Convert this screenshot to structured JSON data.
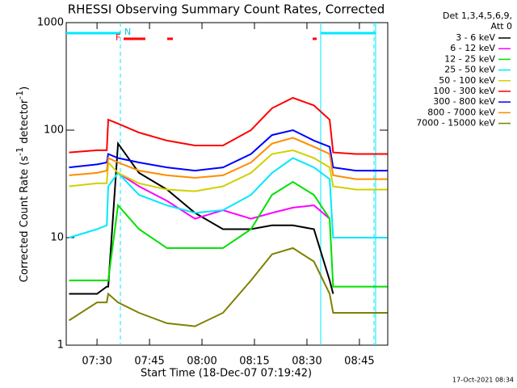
{
  "chart_data": {
    "type": "line",
    "title": "RHESSI Observing Summary Count Rates, Corrected",
    "x_label": "Start Time (18-Dec-07 07:19:42)",
    "y_label": [
      "Corrected Count Rate (s",
      "-1",
      " detector",
      "-1",
      ")"
    ],
    "legend_header": [
      "Det 1,3,4,5,6,9,",
      "Att 0"
    ],
    "flags": [
      "F",
      "N"
    ],
    "timestamp": "17-Oct-2021 08:34",
    "log_y": true,
    "legend": "right",
    "xlim": [
      441.2,
      533.1
    ],
    "xticks": [
      {
        "value": 450,
        "label": "07:30"
      },
      {
        "value": 465,
        "label": "07:45"
      },
      {
        "value": 480,
        "label": "08:00"
      },
      {
        "value": 495,
        "label": "08:15"
      },
      {
        "value": 510,
        "label": "08:30"
      },
      {
        "value": 525,
        "label": "08:45"
      }
    ],
    "ylim": [
      1,
      1000
    ],
    "yticks": [
      1,
      10,
      100,
      1000
    ],
    "x": [
      442,
      450,
      452.8,
      453.2,
      456,
      462,
      470,
      478,
      486,
      494,
      500,
      506,
      512,
      516.5,
      517.5,
      524,
      533
    ],
    "series": [
      {
        "name": "3 - 6 keV",
        "color": "#000000",
        "values": [
          3,
          3,
          3.5,
          3.5,
          75,
          40,
          28,
          17,
          12,
          12,
          13,
          13,
          12,
          4,
          3,
          null,
          null
        ]
      },
      {
        "name": "6 - 12 keV",
        "color": "#ff00ff",
        "values": [
          null,
          null,
          null,
          null,
          40,
          30,
          22,
          15,
          18,
          15,
          17,
          19,
          20,
          15,
          null,
          null,
          null
        ]
      },
      {
        "name": "12 - 25 keV",
        "color": "#00e000",
        "values": [
          4,
          4,
          4,
          4,
          20,
          12,
          8,
          8,
          8,
          12,
          25,
          33,
          25,
          15,
          3.5,
          3.5,
          3.5
        ]
      },
      {
        "name": "25 - 50 keV",
        "color": "#00e8ff",
        "values": [
          10,
          12,
          13,
          30,
          40,
          25,
          20,
          17,
          18,
          25,
          40,
          55,
          45,
          35,
          10,
          10,
          10
        ]
      },
      {
        "name": "50 - 100 keV",
        "color": "#d0d000",
        "values": [
          30,
          32,
          32,
          50,
          40,
          32,
          28,
          27,
          30,
          40,
          60,
          65,
          55,
          45,
          30,
          28,
          28
        ]
      },
      {
        "name": "100 - 300 keV",
        "color": "#ff0000",
        "values": [
          62,
          65,
          65,
          125,
          115,
          95,
          80,
          72,
          72,
          100,
          160,
          200,
          170,
          125,
          62,
          60,
          60
        ]
      },
      {
        "name": "300 - 800 keV",
        "color": "#0000ff",
        "values": [
          45,
          48,
          50,
          60,
          55,
          50,
          45,
          42,
          45,
          60,
          90,
          100,
          80,
          70,
          45,
          42,
          42
        ]
      },
      {
        "name": "800 - 7000 keV",
        "color": "#ff8c00",
        "values": [
          38,
          40,
          42,
          55,
          50,
          42,
          38,
          36,
          38,
          50,
          75,
          85,
          70,
          60,
          38,
          35,
          35
        ]
      },
      {
        "name": "7000 - 15000 keV",
        "color": "#808000",
        "values": [
          1.7,
          2.5,
          2.5,
          3,
          2.5,
          2,
          1.6,
          1.5,
          2,
          4,
          7,
          8,
          6,
          3,
          2,
          2,
          2
        ]
      }
    ]
  }
}
